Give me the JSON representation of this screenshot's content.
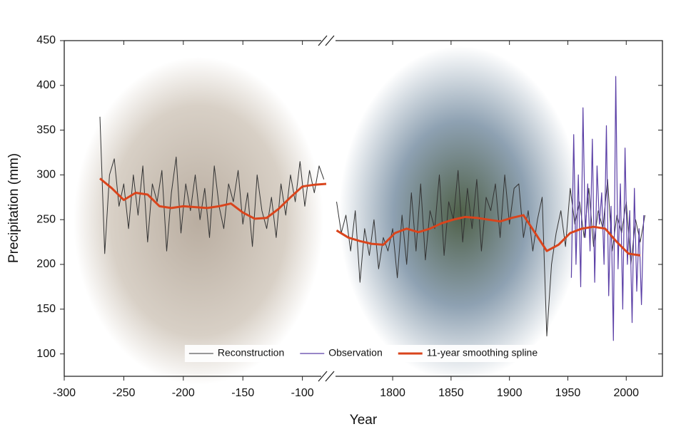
{
  "chart_data": {
    "type": "line",
    "xlabel": "Year",
    "ylabel": "Precipitation (mm)",
    "ylim": [
      75,
      450
    ],
    "yticks": [
      100,
      150,
      200,
      250,
      300,
      350,
      400,
      450
    ],
    "x_panels": [
      {
        "xlim": [
          -300,
          -80
        ],
        "xticks": [
          -300,
          -250,
          -200,
          -150,
          -100
        ]
      },
      {
        "xlim": [
          1748,
          2031
        ],
        "xticks": [
          1800,
          1850,
          1900,
          1950,
          2000
        ]
      }
    ],
    "legend": "lower center",
    "series": [
      {
        "name": "Reconstruction",
        "color": "#333333",
        "width": 1,
        "x": [
          -270,
          -266,
          -262,
          -258,
          -254,
          -250,
          -246,
          -242,
          -238,
          -234,
          -230,
          -226,
          -222,
          -218,
          -214,
          -210,
          -206,
          -202,
          -198,
          -194,
          -190,
          -186,
          -182,
          -178,
          -174,
          -170,
          -166,
          -162,
          -158,
          -154,
          -150,
          -146,
          -142,
          -138,
          -134,
          -130,
          -126,
          -122,
          -118,
          -114,
          -110,
          -106,
          -102,
          -98,
          -94,
          -90,
          -86,
          -82,
          null,
          1752,
          1756,
          1760,
          1764,
          1768,
          1772,
          1776,
          1780,
          1784,
          1788,
          1792,
          1796,
          1800,
          1804,
          1808,
          1812,
          1816,
          1820,
          1824,
          1828,
          1832,
          1836,
          1840,
          1844,
          1848,
          1852,
          1856,
          1860,
          1864,
          1868,
          1872,
          1876,
          1880,
          1884,
          1888,
          1892,
          1896,
          1900,
          1904,
          1908,
          1912,
          1916,
          1920,
          1924,
          1928,
          1932,
          1936,
          1940,
          1944,
          1948,
          1952,
          1956,
          1960,
          1964,
          1968,
          1972,
          1976,
          1980,
          1984,
          1988,
          1992,
          1996,
          2000,
          2004,
          2008,
          2012,
          2016
        ],
        "values": [
          365,
          212,
          300,
          318,
          265,
          290,
          240,
          300,
          255,
          310,
          225,
          290,
          270,
          305,
          215,
          280,
          320,
          235,
          290,
          260,
          300,
          250,
          285,
          230,
          310,
          265,
          240,
          290,
          270,
          305,
          245,
          280,
          220,
          300,
          260,
          240,
          275,
          230,
          290,
          255,
          300,
          270,
          315,
          265,
          305,
          280,
          310,
          295,
          null,
          270,
          235,
          255,
          215,
          260,
          180,
          240,
          210,
          250,
          195,
          230,
          215,
          240,
          185,
          255,
          200,
          280,
          215,
          290,
          205,
          260,
          240,
          300,
          210,
          270,
          250,
          305,
          225,
          285,
          240,
          295,
          215,
          275,
          260,
          290,
          230,
          300,
          245,
          285,
          290,
          230,
          260,
          215,
          250,
          275,
          120,
          200,
          235,
          260,
          220,
          285,
          245,
          270,
          230,
          285,
          220,
          260,
          240,
          295,
          215,
          255,
          235,
          270,
          200,
          250,
          225,
          255
        ]
      },
      {
        "name": "Observation",
        "color": "#5b3fa6",
        "width": 1.2,
        "x": [
          1953,
          1955,
          1957,
          1959,
          1961,
          1963,
          1965,
          1967,
          1969,
          1971,
          1973,
          1975,
          1977,
          1979,
          1981,
          1983,
          1985,
          1987,
          1989,
          1991,
          1993,
          1995,
          1997,
          1999,
          2001,
          2003,
          2005,
          2007,
          2009,
          2011,
          2013,
          2015
        ],
        "values": [
          185,
          345,
          200,
          300,
          175,
          375,
          230,
          290,
          215,
          340,
          180,
          310,
          245,
          280,
          200,
          355,
          165,
          265,
          115,
          410,
          195,
          290,
          150,
          330,
          200,
          260,
          135,
          285,
          170,
          240,
          155,
          255
        ]
      },
      {
        "name": "11-year smoothing spline",
        "color": "#d9441c",
        "width": 3,
        "x": [
          -270,
          -260,
          -250,
          -240,
          -230,
          -220,
          -210,
          -200,
          -190,
          -180,
          -170,
          -160,
          -150,
          -140,
          -130,
          -120,
          -110,
          -100,
          -90,
          -80,
          null,
          1752,
          1762,
          1772,
          1782,
          1792,
          1802,
          1812,
          1822,
          1832,
          1842,
          1852,
          1862,
          1872,
          1882,
          1892,
          1902,
          1912,
          1922,
          1932,
          1942,
          1952,
          1962,
          1972,
          1982,
          1992,
          2002,
          2012
        ],
        "values": [
          296,
          285,
          272,
          280,
          278,
          265,
          263,
          265,
          264,
          263,
          265,
          268,
          258,
          251,
          252,
          262,
          275,
          287,
          289,
          290,
          null,
          238,
          230,
          226,
          223,
          222,
          235,
          240,
          236,
          240,
          246,
          250,
          253,
          252,
          250,
          248,
          252,
          255,
          235,
          215,
          222,
          235,
          240,
          242,
          240,
          225,
          212,
          210
        ]
      }
    ]
  }
}
